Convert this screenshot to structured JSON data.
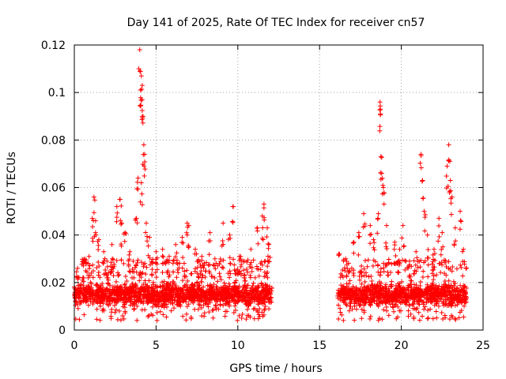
{
  "chart_data": {
    "type": "scatter",
    "title": "Day 141 of 2025, Rate Of TEC Index for receiver cn57",
    "xlabel": "GPS time / hours",
    "ylabel": "ROTI / TECUs",
    "xlim": [
      0,
      25
    ],
    "ylim": [
      0,
      0.12
    ],
    "x_ticks": [
      0,
      5,
      10,
      15,
      20,
      25
    ],
    "x_tick_labels": [
      "0",
      "5",
      "10",
      "15",
      "20",
      "25"
    ],
    "y_ticks": [
      0,
      0.02,
      0.04,
      0.06,
      0.08,
      0.1,
      0.12
    ],
    "y_tick_labels": [
      "0",
      "0.02",
      "0.04",
      "0.06",
      "0.08",
      "0.1",
      "0.12"
    ],
    "grid": true,
    "marker": "+",
    "color": "#ff0000",
    "series": [
      {
        "name": "ROTI",
        "dense_band": {
          "y_low": 0.008,
          "y_high": 0.022,
          "x_ranges": [
            [
              0,
              12.1
            ],
            [
              16.1,
              24
            ]
          ]
        },
        "points": [
          [
            0.2,
            0.026
          ],
          [
            0.5,
            0.021
          ],
          [
            0.9,
            0.031
          ],
          [
            1.1,
            0.047
          ],
          [
            1.2,
            0.056
          ],
          [
            1.3,
            0.046
          ],
          [
            1.5,
            0.038
          ],
          [
            1.8,
            0.033
          ],
          [
            2.0,
            0.029
          ],
          [
            2.3,
            0.036
          ],
          [
            2.6,
            0.052
          ],
          [
            2.8,
            0.055
          ],
          [
            2.9,
            0.045
          ],
          [
            3.1,
            0.041
          ],
          [
            3.4,
            0.033
          ],
          [
            3.6,
            0.029
          ],
          [
            3.8,
            0.047
          ],
          [
            3.9,
            0.064
          ],
          [
            4.0,
            0.118
          ],
          [
            4.05,
            0.101
          ],
          [
            4.1,
            0.107
          ],
          [
            4.15,
            0.097
          ],
          [
            4.2,
            0.09
          ],
          [
            4.25,
            0.078
          ],
          [
            4.3,
            0.074
          ],
          [
            4.1,
            0.062
          ],
          [
            4.4,
            0.045
          ],
          [
            4.6,
            0.039
          ],
          [
            5.0,
            0.033
          ],
          [
            5.4,
            0.034
          ],
          [
            5.8,
            0.031
          ],
          [
            6.2,
            0.036
          ],
          [
            6.6,
            0.039
          ],
          [
            6.9,
            0.045
          ],
          [
            7.0,
            0.044
          ],
          [
            7.4,
            0.034
          ],
          [
            7.8,
            0.031
          ],
          [
            8.3,
            0.041
          ],
          [
            8.6,
            0.03
          ],
          [
            9.1,
            0.045
          ],
          [
            9.5,
            0.04
          ],
          [
            9.7,
            0.052
          ],
          [
            10.1,
            0.031
          ],
          [
            10.4,
            0.029
          ],
          [
            10.8,
            0.034
          ],
          [
            11.2,
            0.043
          ],
          [
            11.5,
            0.048
          ],
          [
            11.6,
            0.053
          ],
          [
            11.8,
            0.043
          ],
          [
            11.9,
            0.036
          ],
          [
            16.2,
            0.032
          ],
          [
            16.6,
            0.03
          ],
          [
            17.1,
            0.037
          ],
          [
            17.4,
            0.041
          ],
          [
            17.7,
            0.049
          ],
          [
            18.1,
            0.044
          ],
          [
            18.3,
            0.038
          ],
          [
            18.6,
            0.049
          ],
          [
            18.7,
            0.096
          ],
          [
            18.72,
            0.093
          ],
          [
            18.75,
            0.073
          ],
          [
            18.8,
            0.066
          ],
          [
            18.9,
            0.06
          ],
          [
            19.1,
            0.044
          ],
          [
            19.6,
            0.037
          ],
          [
            19.9,
            0.034
          ],
          [
            20.1,
            0.044
          ],
          [
            20.5,
            0.029
          ],
          [
            20.9,
            0.033
          ],
          [
            21.2,
            0.074
          ],
          [
            21.3,
            0.063
          ],
          [
            21.4,
            0.05
          ],
          [
            21.6,
            0.04
          ],
          [
            22.0,
            0.034
          ],
          [
            22.3,
            0.047
          ],
          [
            22.5,
            0.041
          ],
          [
            22.8,
            0.069
          ],
          [
            22.9,
            0.078
          ],
          [
            23.0,
            0.063
          ],
          [
            23.1,
            0.056
          ],
          [
            23.3,
            0.043
          ],
          [
            23.6,
            0.05
          ],
          [
            23.8,
            0.034
          ]
        ]
      }
    ]
  }
}
